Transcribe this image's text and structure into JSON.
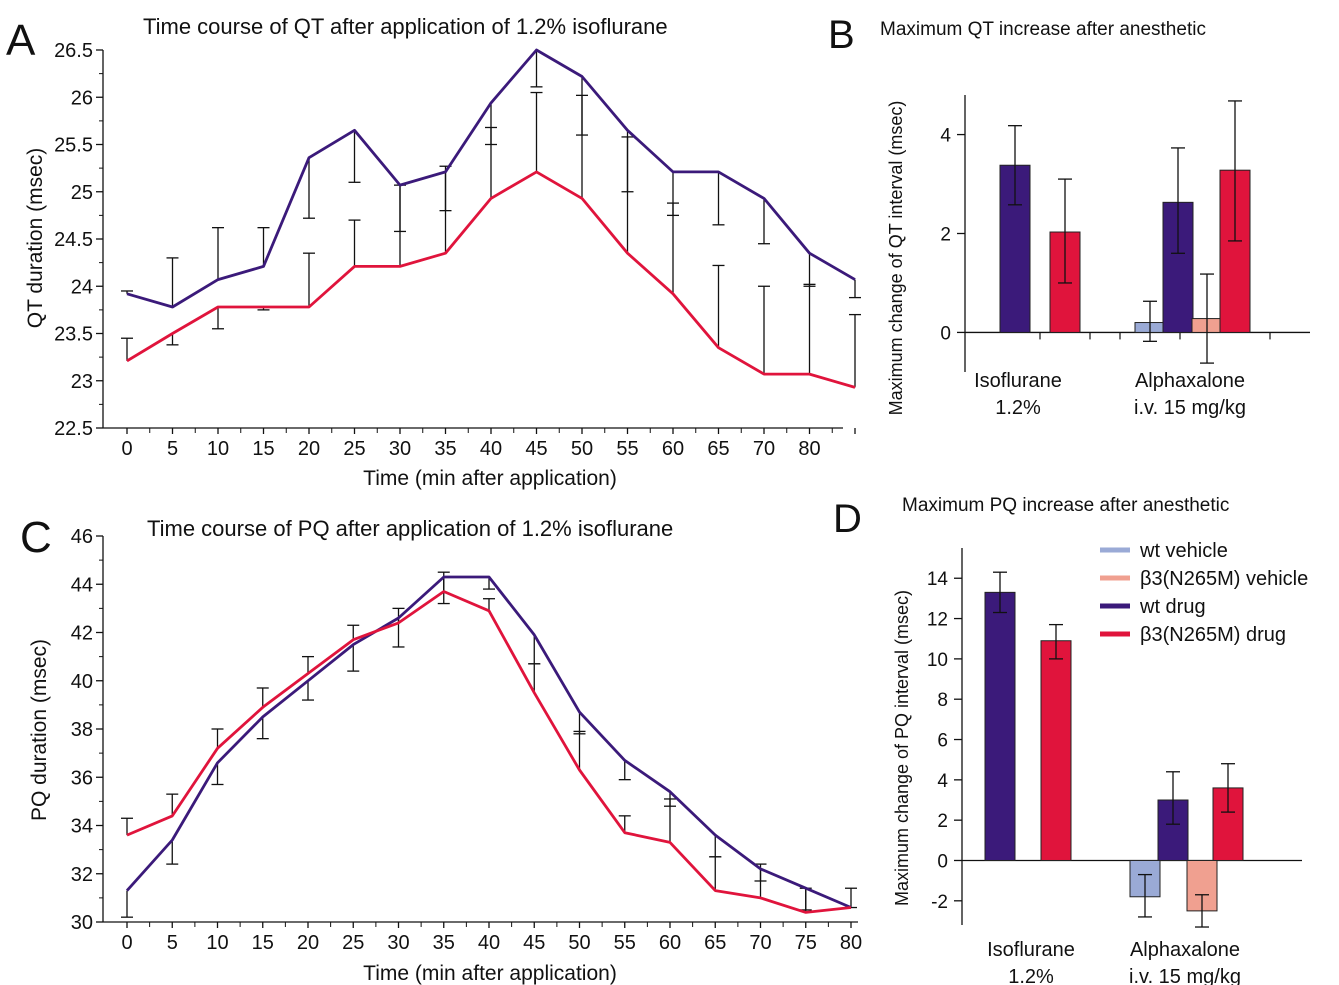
{
  "colors": {
    "wt_drug": "#3b1a7a",
    "mut_drug": "#e0143c",
    "wt_vehicle": "#9aaad6",
    "mut_vehicle": "#f0a090",
    "axis": "#111111"
  },
  "chart_data": [
    {
      "panel": "A",
      "type": "line",
      "title": "Time course of QT after application of 1.2% isoflurane",
      "xlabel": "Time (min after application)",
      "ylabel": "QT duration (msec)",
      "categories": [
        "0",
        "5",
        "10",
        "15",
        "20",
        "25",
        "30",
        "35",
        "40",
        "45",
        "50",
        "55",
        "60",
        "65",
        "70",
        "80",
        ""
      ],
      "yticks": [
        "22.5",
        "23",
        "23.5",
        "24",
        "24.5",
        "25",
        "25.5",
        "26",
        "26.5"
      ],
      "ylim": [
        22.5,
        26.5
      ],
      "grid": false,
      "series": [
        {
          "key": "wt_drug",
          "values": [
            23.92,
            23.78,
            24.07,
            24.21,
            25.36,
            25.65,
            25.07,
            25.21,
            25.94,
            26.5,
            26.22,
            25.65,
            25.21,
            25.21,
            24.93,
            24.35,
            24.07
          ],
          "errors": [
            23.95,
            24.3,
            24.62,
            24.62,
            24.72,
            25.1,
            24.58,
            24.8,
            25.5,
            26.11,
            25.6,
            25.0,
            24.75,
            24.65,
            24.45,
            24.0,
            23.88
          ]
        },
        {
          "key": "mut_drug",
          "values": [
            23.21,
            23.5,
            23.78,
            23.78,
            23.78,
            24.21,
            24.21,
            24.35,
            24.93,
            25.21,
            24.93,
            24.35,
            23.92,
            23.35,
            23.07,
            23.07,
            22.93
          ],
          "errors": [
            23.45,
            23.38,
            23.55,
            23.75,
            24.35,
            24.7,
            25.07,
            25.27,
            25.68,
            26.05,
            26.02,
            25.58,
            24.88,
            24.22,
            24.0,
            24.02,
            23.7
          ]
        }
      ]
    },
    {
      "panel": "B",
      "type": "bar",
      "title": "Maximum QT increase after anesthetic",
      "ylabel": "Maximum change of QT interval (msec)",
      "categories": [
        "Isoflurane\n1.2%",
        "Alphaxalone\ni.v. 15 mg/kg"
      ],
      "yticks": [
        "0",
        "2",
        "4"
      ],
      "ylim": [
        -0.8,
        4.8
      ],
      "bars": [
        {
          "group": 0,
          "key": "wt_drug",
          "value": 3.38,
          "err_low": 2.58,
          "err_high": 4.18
        },
        {
          "group": 0,
          "key": "mut_drug",
          "value": 2.03,
          "err_low": 1.0,
          "err_high": 3.1
        },
        {
          "group": 1,
          "key": "wt_vehicle",
          "value": 0.2,
          "err_low": -0.18,
          "err_high": 0.63
        },
        {
          "group": 1,
          "key": "wt_drug",
          "value": 2.63,
          "err_low": 1.6,
          "err_high": 3.73
        },
        {
          "group": 1,
          "key": "mut_vehicle",
          "value": 0.28,
          "err_low": -0.62,
          "err_high": 1.18
        },
        {
          "group": 1,
          "key": "mut_drug",
          "value": 3.28,
          "err_low": 1.85,
          "err_high": 4.68
        }
      ]
    },
    {
      "panel": "C",
      "type": "line",
      "title": "Time course of PQ after application of 1.2% isoflurane",
      "xlabel": "Time (min after application)",
      "ylabel": "PQ duration (msec)",
      "categories": [
        "0",
        "5",
        "10",
        "15",
        "20",
        "25",
        "30",
        "35",
        "40",
        "45",
        "50",
        "55",
        "60",
        "65",
        "70",
        "75",
        "80"
      ],
      "yticks": [
        "30",
        "32",
        "34",
        "36",
        "38",
        "40",
        "42",
        "44",
        "46"
      ],
      "ylim": [
        30,
        46
      ],
      "grid": false,
      "series": [
        {
          "key": "wt_drug",
          "values": [
            31.3,
            33.4,
            36.6,
            38.5,
            40.0,
            41.5,
            42.6,
            44.3,
            44.3,
            41.9,
            38.7,
            36.7,
            35.4,
            33.6,
            32.2,
            31.4,
            30.6
          ],
          "errors": [
            30.2,
            32.4,
            35.7,
            37.6,
            39.2,
            40.4,
            41.4,
            43.2,
            43.8,
            40.7,
            37.8,
            35.9,
            34.8,
            32.7,
            31.7,
            30.5,
            31.4
          ]
        },
        {
          "key": "mut_drug",
          "values": [
            33.6,
            34.4,
            37.2,
            38.9,
            40.3,
            41.7,
            42.4,
            43.7,
            42.9,
            39.5,
            36.3,
            33.7,
            33.3,
            31.3,
            31.0,
            30.4,
            30.6
          ],
          "errors": [
            34.3,
            35.3,
            38.0,
            39.7,
            41.0,
            42.3,
            43.0,
            44.5,
            43.4,
            40.7,
            37.9,
            34.4,
            35.1,
            32.7,
            32.4,
            31.4,
            30.6
          ]
        }
      ]
    },
    {
      "panel": "D",
      "type": "bar",
      "title": "Maximum PQ increase after anesthetic",
      "ylabel": "Maximum change of PQ interval (msec)",
      "categories": [
        "Isoflurane\n1.2%",
        "Alphaxalone\ni.v. 15 mg/kg"
      ],
      "yticks": [
        "-2",
        "0",
        "2",
        "4",
        "6",
        "8",
        "10",
        "12",
        "14"
      ],
      "ylim": [
        -3.2,
        15.5
      ],
      "bars": [
        {
          "group": 0,
          "key": "wt_drug",
          "value": 13.3,
          "err_low": 12.3,
          "err_high": 14.3
        },
        {
          "group": 0,
          "key": "mut_drug",
          "value": 10.9,
          "err_low": 10.0,
          "err_high": 11.7
        },
        {
          "group": 1,
          "key": "wt_vehicle",
          "value": -1.8,
          "err_low": -2.8,
          "err_high": -0.7
        },
        {
          "group": 1,
          "key": "wt_drug",
          "value": 3.0,
          "err_low": 1.8,
          "err_high": 4.4
        },
        {
          "group": 1,
          "key": "mut_vehicle",
          "value": -2.5,
          "err_low": -3.3,
          "err_high": -1.7
        },
        {
          "group": 1,
          "key": "mut_drug",
          "value": 3.6,
          "err_low": 2.4,
          "err_high": 4.8
        }
      ],
      "legend": {
        "position": "top-right",
        "entries": [
          {
            "key": "wt_vehicle",
            "label": "wt vehicle"
          },
          {
            "key": "mut_vehicle",
            "label": "β3(N265M) vehicle"
          },
          {
            "key": "wt_drug",
            "label": "wt drug"
          },
          {
            "key": "mut_drug",
            "label": "β3(N265M) drug"
          }
        ]
      }
    }
  ],
  "panel_letters": [
    "A",
    "B",
    "C",
    "D"
  ]
}
